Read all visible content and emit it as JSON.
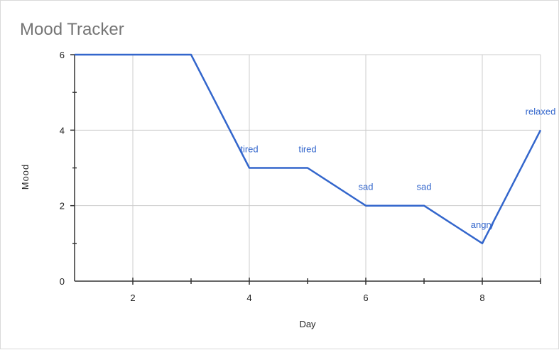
{
  "chart_data": {
    "type": "line",
    "title": "Mood Tracker",
    "xlabel": "Day",
    "ylabel": "Mood",
    "xlim": [
      1,
      9
    ],
    "ylim": [
      0,
      6
    ],
    "x_ticks": [
      2,
      4,
      6,
      8
    ],
    "y_ticks": [
      0,
      2,
      4,
      6
    ],
    "grid": true,
    "line_color": "#3366cc",
    "grid_color": "#cccccc",
    "axis_color": "#333333",
    "series": [
      {
        "x": [
          1,
          2,
          3,
          4,
          5,
          6,
          7,
          8,
          9
        ],
        "values": [
          6,
          6,
          6,
          3,
          3,
          2,
          2,
          1,
          4
        ],
        "labels": [
          "",
          "",
          "",
          "tired",
          "tired",
          "sad",
          "sad",
          "angry",
          "relaxed"
        ]
      }
    ]
  }
}
